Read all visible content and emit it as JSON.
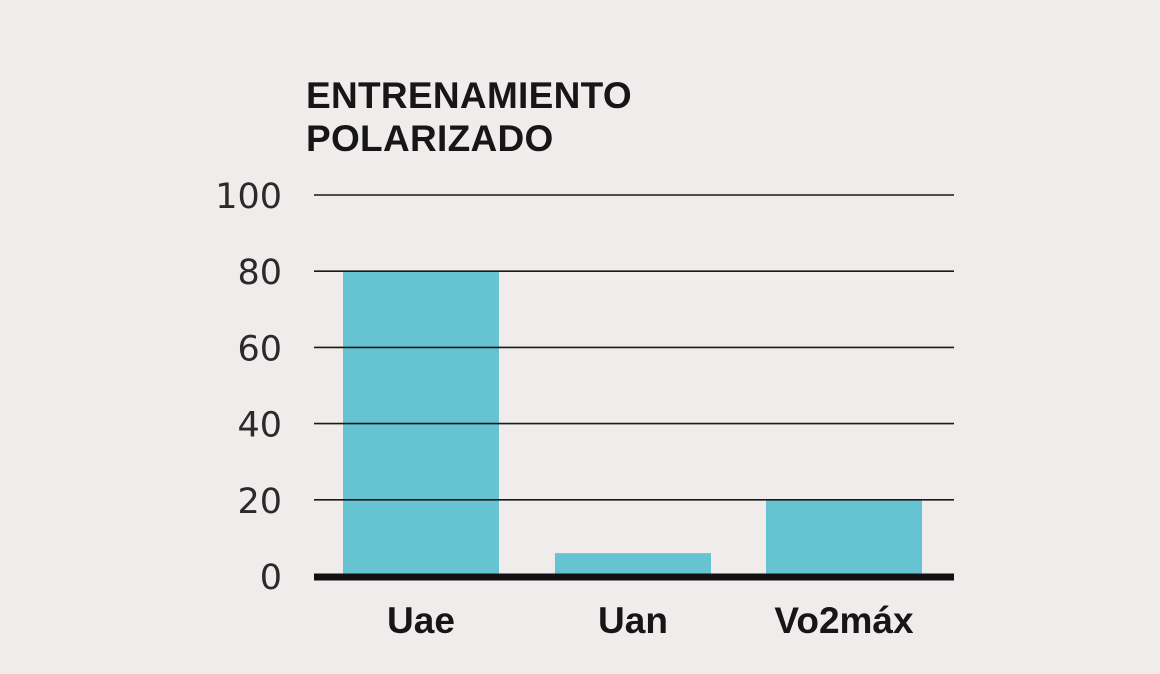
{
  "chart_data": {
    "type": "bar",
    "title_lines": [
      "ENTRENAMIENTO",
      "POLARIZADO"
    ],
    "categories": [
      "Uae",
      "Uan",
      "Vo2máx"
    ],
    "values": [
      80,
      6,
      20
    ],
    "ylim": [
      0,
      100
    ],
    "yticks": [
      0,
      20,
      40,
      60,
      80,
      100
    ],
    "grid": true,
    "bar_color": "#66c3d1",
    "gridline_color": "#1a1a1a",
    "baseline_color": "#111111"
  }
}
